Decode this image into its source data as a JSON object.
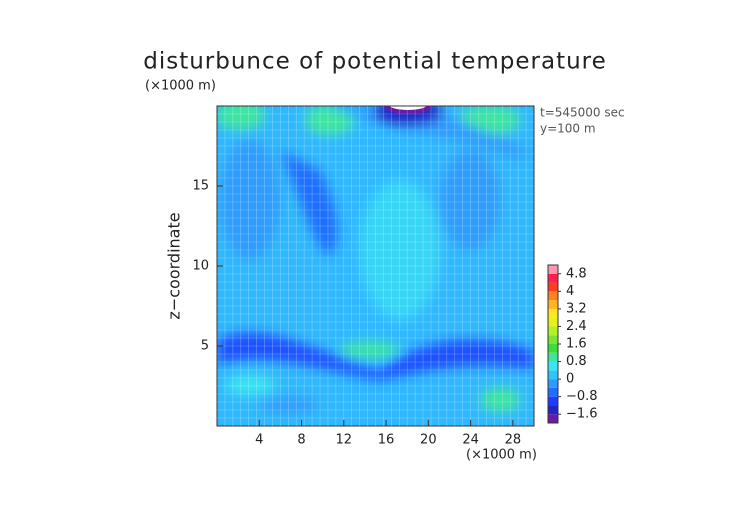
{
  "chart_data": {
    "type": "contour",
    "title": "disturbunce of potential temperature",
    "y_unit": "(×1000 m)",
    "x_unit": "(×1000 m)",
    "y_label": "z−coordinate",
    "annotations": [
      "t=545000 sec",
      "y=100 m"
    ],
    "xlim": [
      0,
      30
    ],
    "xticks": [
      4,
      8,
      12,
      16,
      20,
      24,
      28
    ],
    "ylim": [
      0,
      20
    ],
    "yticks": [
      5,
      10,
      15
    ],
    "grid": true,
    "colorbar": {
      "lim": [
        -2.0,
        5.2
      ],
      "ticks": [
        {
          "value": -1.6,
          "label": "−1.6"
        },
        {
          "value": -0.8,
          "label": "−0.8"
        },
        0,
        0.8,
        1.6,
        2.4,
        3.2,
        4,
        4.8
      ],
      "colors": [
        "#6a1aa8",
        "#2424c4",
        "#1e3cff",
        "#1e6eff",
        "#2d9bff",
        "#2fc4ff",
        "#38e6f0",
        "#3ce6a0",
        "#3cdc3c",
        "#78e632",
        "#b4f028",
        "#e6f01e",
        "#ffe61e",
        "#ffb41e",
        "#ff821e",
        "#ff3c1e",
        "#ff1e50",
        "#ff96b4"
      ]
    }
  }
}
